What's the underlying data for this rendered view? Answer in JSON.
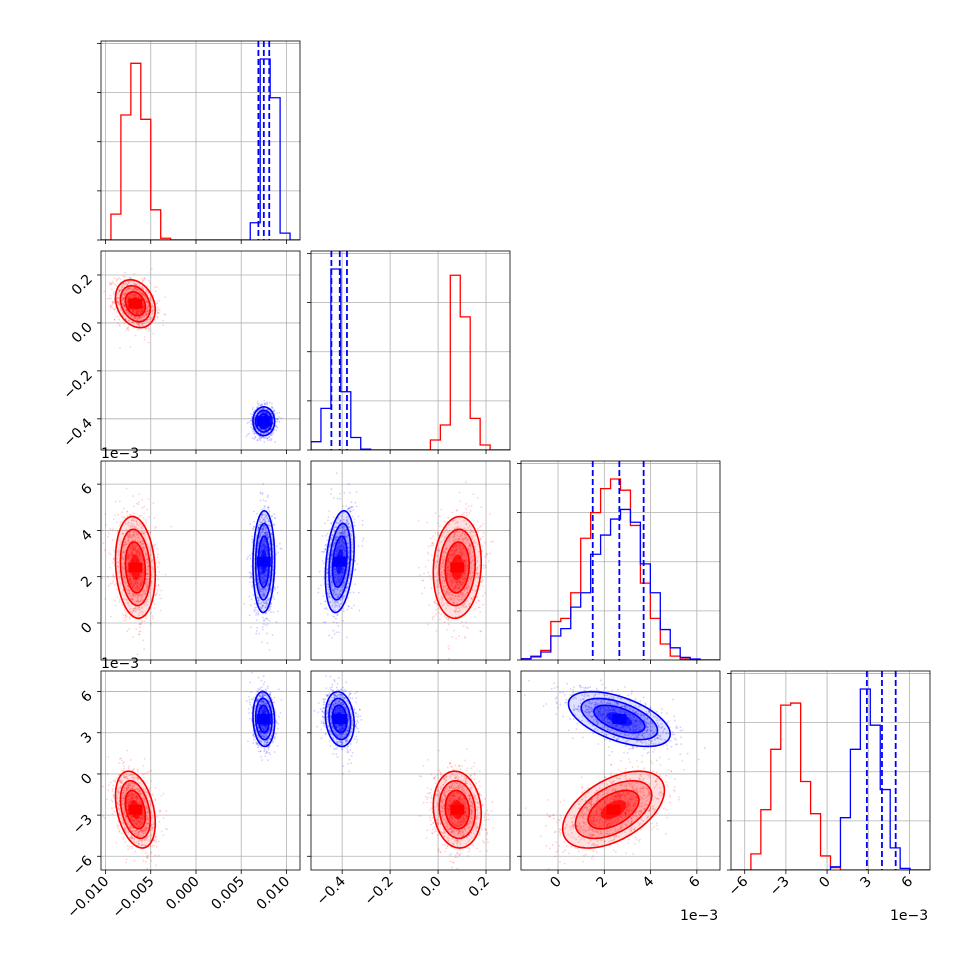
{
  "chart_data": {
    "type": "corner",
    "title": "",
    "grid": true,
    "colors": {
      "series_a": "#ff0000",
      "series_b": "#0000ff"
    },
    "parameters": [
      {
        "range": [
          -0.0105,
          0.0115
        ],
        "ticks": [
          -0.01,
          -0.005,
          0.0,
          0.005,
          0.01
        ],
        "tick_labels": [
          "−0.010",
          "−0.005",
          "0.000",
          "0.005",
          "0.010"
        ],
        "offset_label": ""
      },
      {
        "range": [
          -0.53,
          0.3
        ],
        "ticks": [
          -0.4,
          -0.2,
          0.0,
          0.2
        ],
        "tick_labels": [
          "−0.4",
          "−0.2",
          "0.0",
          "0.2"
        ],
        "offset_label": ""
      },
      {
        "range": [
          -1.6,
          7.0
        ],
        "ticks": [
          0,
          2,
          4,
          6
        ],
        "tick_labels": [
          "0",
          "2",
          "4",
          "6"
        ],
        "offset_label": "1e−3"
      },
      {
        "range": [
          -7.0,
          7.5
        ],
        "ticks": [
          -6,
          -3,
          0,
          3,
          6
        ],
        "tick_labels": [
          "−6",
          "−3",
          "0",
          "3",
          "6"
        ],
        "offset_label": "1e−3"
      }
    ],
    "series": [
      {
        "color": "#ff0000",
        "means": [
          -0.0067,
          0.08,
          2.4,
          -2.6
        ],
        "sds": [
          0.0011,
          0.05,
          1.1,
          1.4
        ],
        "corr": [
          [
            0,
            1,
            -0.25
          ],
          [
            0,
            2,
            -0.15
          ],
          [
            0,
            3,
            -0.35
          ],
          [
            1,
            2,
            0.1
          ],
          [
            1,
            3,
            -0.1
          ],
          [
            2,
            3,
            0.5
          ]
        ],
        "quantiles": []
      },
      {
        "color": "#0000ff",
        "means": [
          0.0075,
          -0.41,
          2.65,
          4.0
        ],
        "sds": [
          0.0006,
          0.03,
          1.1,
          1.0
        ],
        "corr": [
          [
            0,
            1,
            0.0
          ],
          [
            0,
            2,
            0.05
          ],
          [
            0,
            3,
            -0.1
          ],
          [
            1,
            2,
            0.3
          ],
          [
            1,
            3,
            -0.15
          ],
          [
            2,
            3,
            -0.55
          ]
        ],
        "quantiles": [
          [
            0.0069,
            0.0075,
            0.0081
          ],
          [
            -0.445,
            -0.41,
            -0.38
          ],
          [
            1.5,
            2.65,
            3.7
          ],
          [
            2.9,
            4.0,
            5.0
          ]
        ]
      }
    ],
    "histograms": [
      {
        "bin_edges": [
          -0.0105,
          -0.0094,
          -0.0083,
          -0.0072,
          -0.0061,
          -0.005,
          -0.0039,
          -0.0028,
          -0.0017,
          -0.0006,
          0.0005,
          0.0016,
          0.0027,
          0.0038,
          0.0049,
          0.006,
          0.0071,
          0.0082,
          0.0093,
          0.0104,
          0.0115
        ],
        "counts": [
          [
            0,
            60,
            290,
            410,
            280,
            70,
            4,
            0,
            0,
            0,
            0,
            0,
            0,
            0,
            0,
            0,
            0,
            0,
            0,
            0
          ],
          [
            0,
            0,
            0,
            0,
            0,
            0,
            0,
            0,
            0,
            0,
            0,
            0,
            0,
            0,
            0,
            40,
            420,
            330,
            16,
            0
          ]
        ]
      },
      {
        "bin_edges": [
          -0.53,
          -0.4885,
          -0.447,
          -0.4055,
          -0.364,
          -0.3225,
          -0.281,
          -0.2395,
          -0.198,
          -0.1565,
          -0.115,
          -0.0735,
          -0.032,
          0.0095,
          0.051,
          0.0925,
          0.134,
          0.1755,
          0.217,
          0.2585,
          0.3
        ],
        "counts": [
          [
            0,
            0,
            0,
            0,
            0,
            0,
            0,
            0,
            0,
            0,
            0,
            0,
            24,
            60,
            420,
            320,
            76,
            12,
            0,
            0
          ],
          [
            20,
            100,
            435,
            140,
            30,
            2,
            0,
            0,
            0,
            0,
            0,
            0,
            0,
            0,
            0,
            0,
            0,
            0,
            0,
            0
          ]
        ]
      },
      {
        "bin_edges": [
          -1.6,
          -1.17,
          -0.74,
          -0.31,
          0.12,
          0.55,
          0.98,
          1.41,
          1.84,
          2.27,
          2.7,
          3.13,
          3.56,
          3.99,
          4.42,
          4.85,
          5.28,
          5.71,
          6.14,
          6.57,
          7.0
        ],
        "counts": [
          [
            4,
            12,
            30,
            120,
            130,
            210,
            380,
            460,
            535,
            565,
            530,
            420,
            240,
            130,
            50,
            12,
            3,
            1,
            0,
            0
          ],
          [
            4,
            10,
            25,
            75,
            98,
            165,
            210,
            330,
            390,
            440,
            470,
            430,
            300,
            210,
            95,
            38,
            8,
            3,
            0,
            0
          ]
        ]
      },
      {
        "bin_edges": [
          -7.0,
          -6.275,
          -5.55,
          -4.825,
          -4.1,
          -3.375,
          -2.65,
          -1.925,
          -1.2,
          -0.475,
          0.25,
          0.975,
          1.7,
          2.425,
          3.15,
          3.875,
          4.6,
          5.325,
          6.05,
          6.775,
          7.5
        ],
        "counts": [
          [
            0,
            0,
            40,
            150,
            300,
            410,
            415,
            220,
            140,
            35,
            6,
            0,
            0,
            0,
            0,
            0,
            0,
            0,
            0,
            0
          ],
          [
            0,
            0,
            0,
            0,
            0,
            0,
            0,
            0,
            0,
            0,
            8,
            130,
            300,
            450,
            360,
            200,
            55,
            4,
            0,
            0
          ]
        ]
      }
    ]
  }
}
